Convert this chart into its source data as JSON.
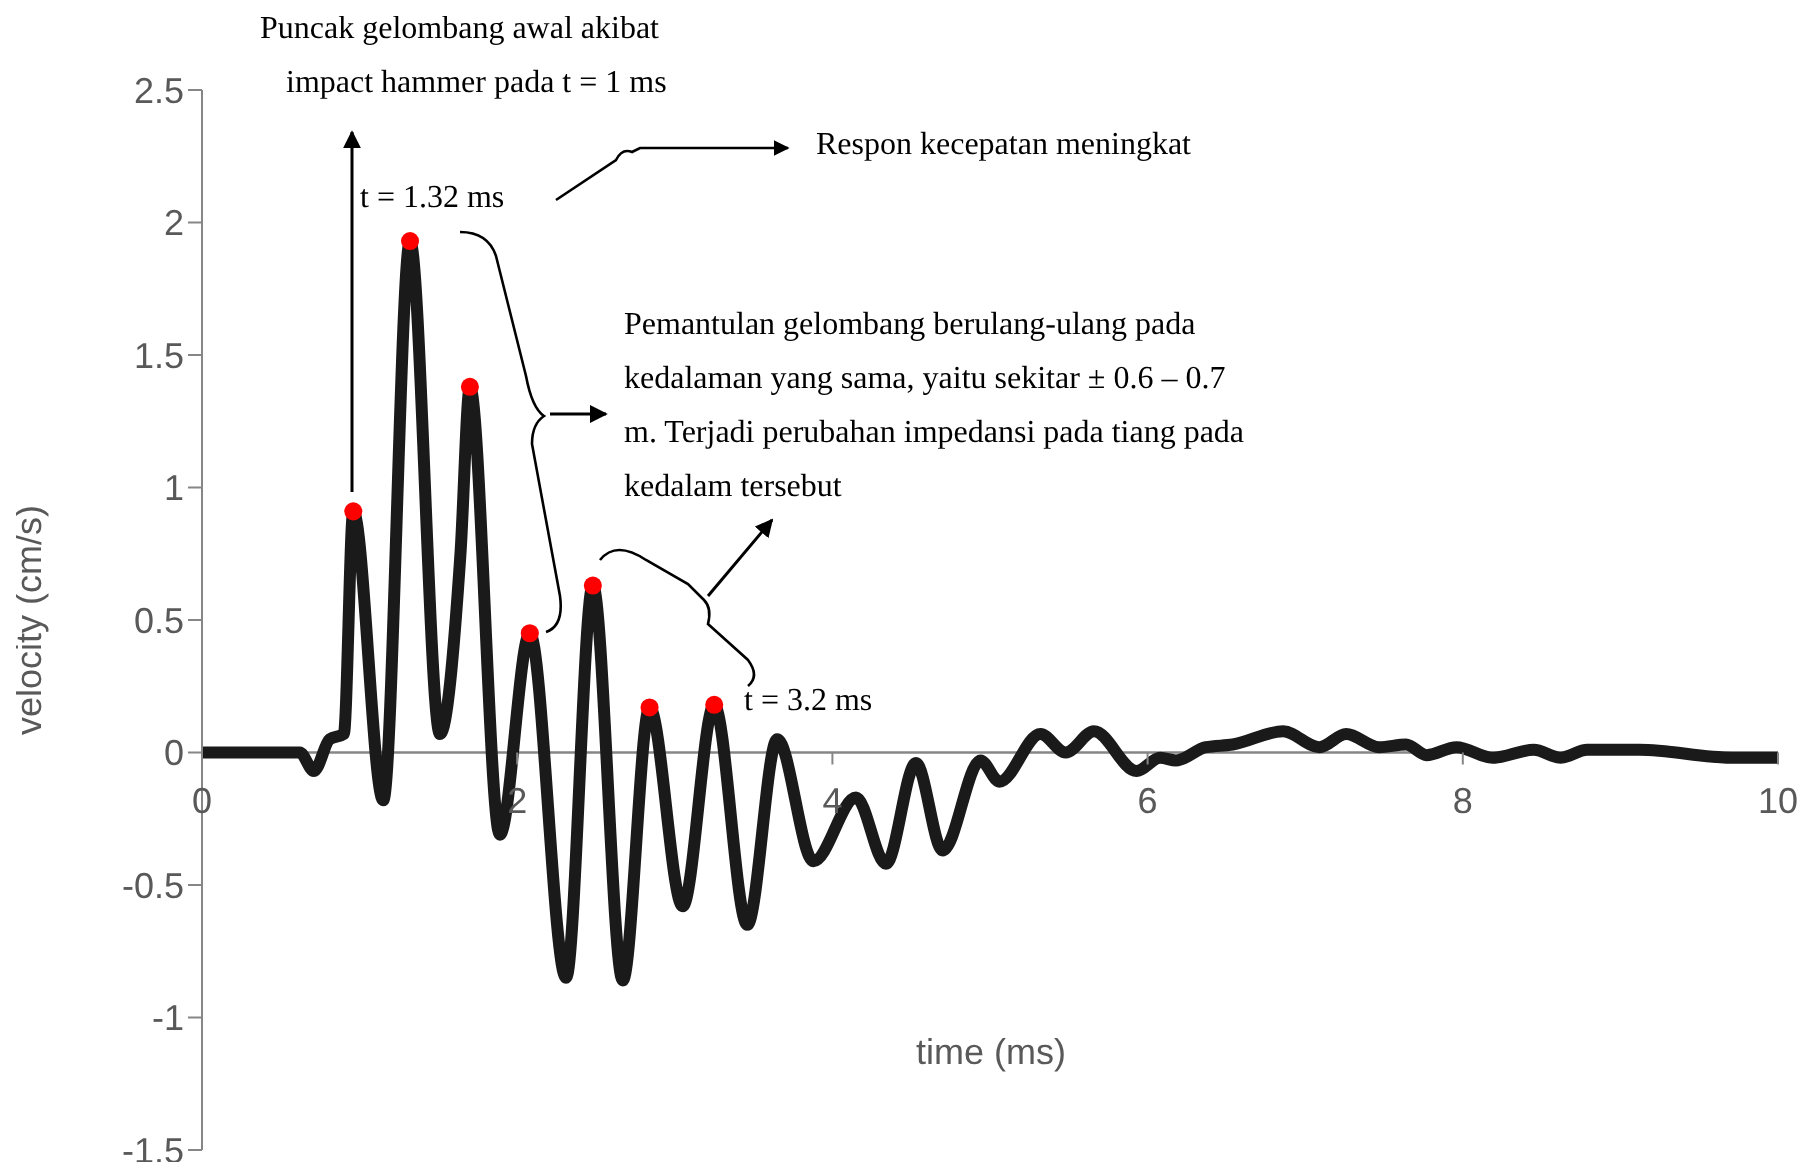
{
  "chart_data": {
    "type": "line",
    "xlabel": "time (ms)",
    "ylabel": "velocity (cm/s)",
    "xlim": [
      0,
      10
    ],
    "xticks": [
      0,
      2,
      4,
      6,
      8,
      10
    ],
    "ylim": [
      -1.5,
      2.5
    ],
    "yticks": [
      -1.5,
      -1,
      -0.5,
      0,
      0.5,
      1,
      1.5,
      2,
      2.5
    ],
    "series": [
      {
        "color": "#1a1a1a",
        "x": [
          0,
          0.62,
          0.71,
          0.81,
          0.9,
          0.96,
          1.15,
          1.32,
          1.51,
          1.64,
          1.7,
          1.89,
          2.08,
          2.31,
          2.48,
          2.67,
          2.84,
          3.05,
          3.25,
          3.46,
          3.65,
          3.88,
          4.15,
          4.34,
          4.53,
          4.7,
          4.94,
          5.06,
          5.32,
          5.48,
          5.66,
          5.93,
          6.08,
          6.18,
          6.37,
          6.54,
          6.86,
          7.09,
          7.26,
          7.47,
          7.64,
          7.77,
          7.96,
          8.19,
          8.45,
          8.62,
          8.79,
          9.12,
          9.71,
          10
        ],
        "values": [
          0,
          0,
          -0.07,
          0.05,
          0.07,
          0.91,
          -0.18,
          1.93,
          0.07,
          0.75,
          1.38,
          -0.31,
          0.45,
          -0.85,
          0.63,
          -0.86,
          0.17,
          -0.58,
          0.18,
          -0.65,
          0.05,
          -0.41,
          -0.17,
          -0.42,
          -0.04,
          -0.37,
          -0.03,
          -0.11,
          0.07,
          0,
          0.08,
          -0.07,
          -0.02,
          -0.03,
          0.02,
          0.03,
          0.08,
          0.02,
          0.07,
          0.02,
          0.03,
          -0.01,
          0.02,
          -0.02,
          0.01,
          -0.02,
          0.01,
          0.01,
          -0.02,
          -0.02
        ]
      },
      {
        "type": "scatter",
        "color": "#ff0000",
        "x": [
          0.96,
          1.32,
          1.7,
          2.08,
          2.48,
          2.84,
          3.25
        ],
        "values": [
          0.91,
          1.93,
          1.38,
          0.45,
          0.63,
          0.17,
          0.18
        ]
      }
    ],
    "annotations": [
      "Puncak gelombang awal akibat impact hammer pada t = 1 ms",
      {
        "text": "t = 1.32 ms",
        "x": 1.32,
        "y": 1.93
      },
      "Respon kecepatan meningkat",
      "Pemantulan gelombang berulang-ulang pada kedalaman yang sama, yaitu sekitar ± 0.6 – 0.7 m. Terjadi perubahan impedansi pada tiang pada kedalam tersebut",
      "t = 3.2 ms"
    ]
  }
}
